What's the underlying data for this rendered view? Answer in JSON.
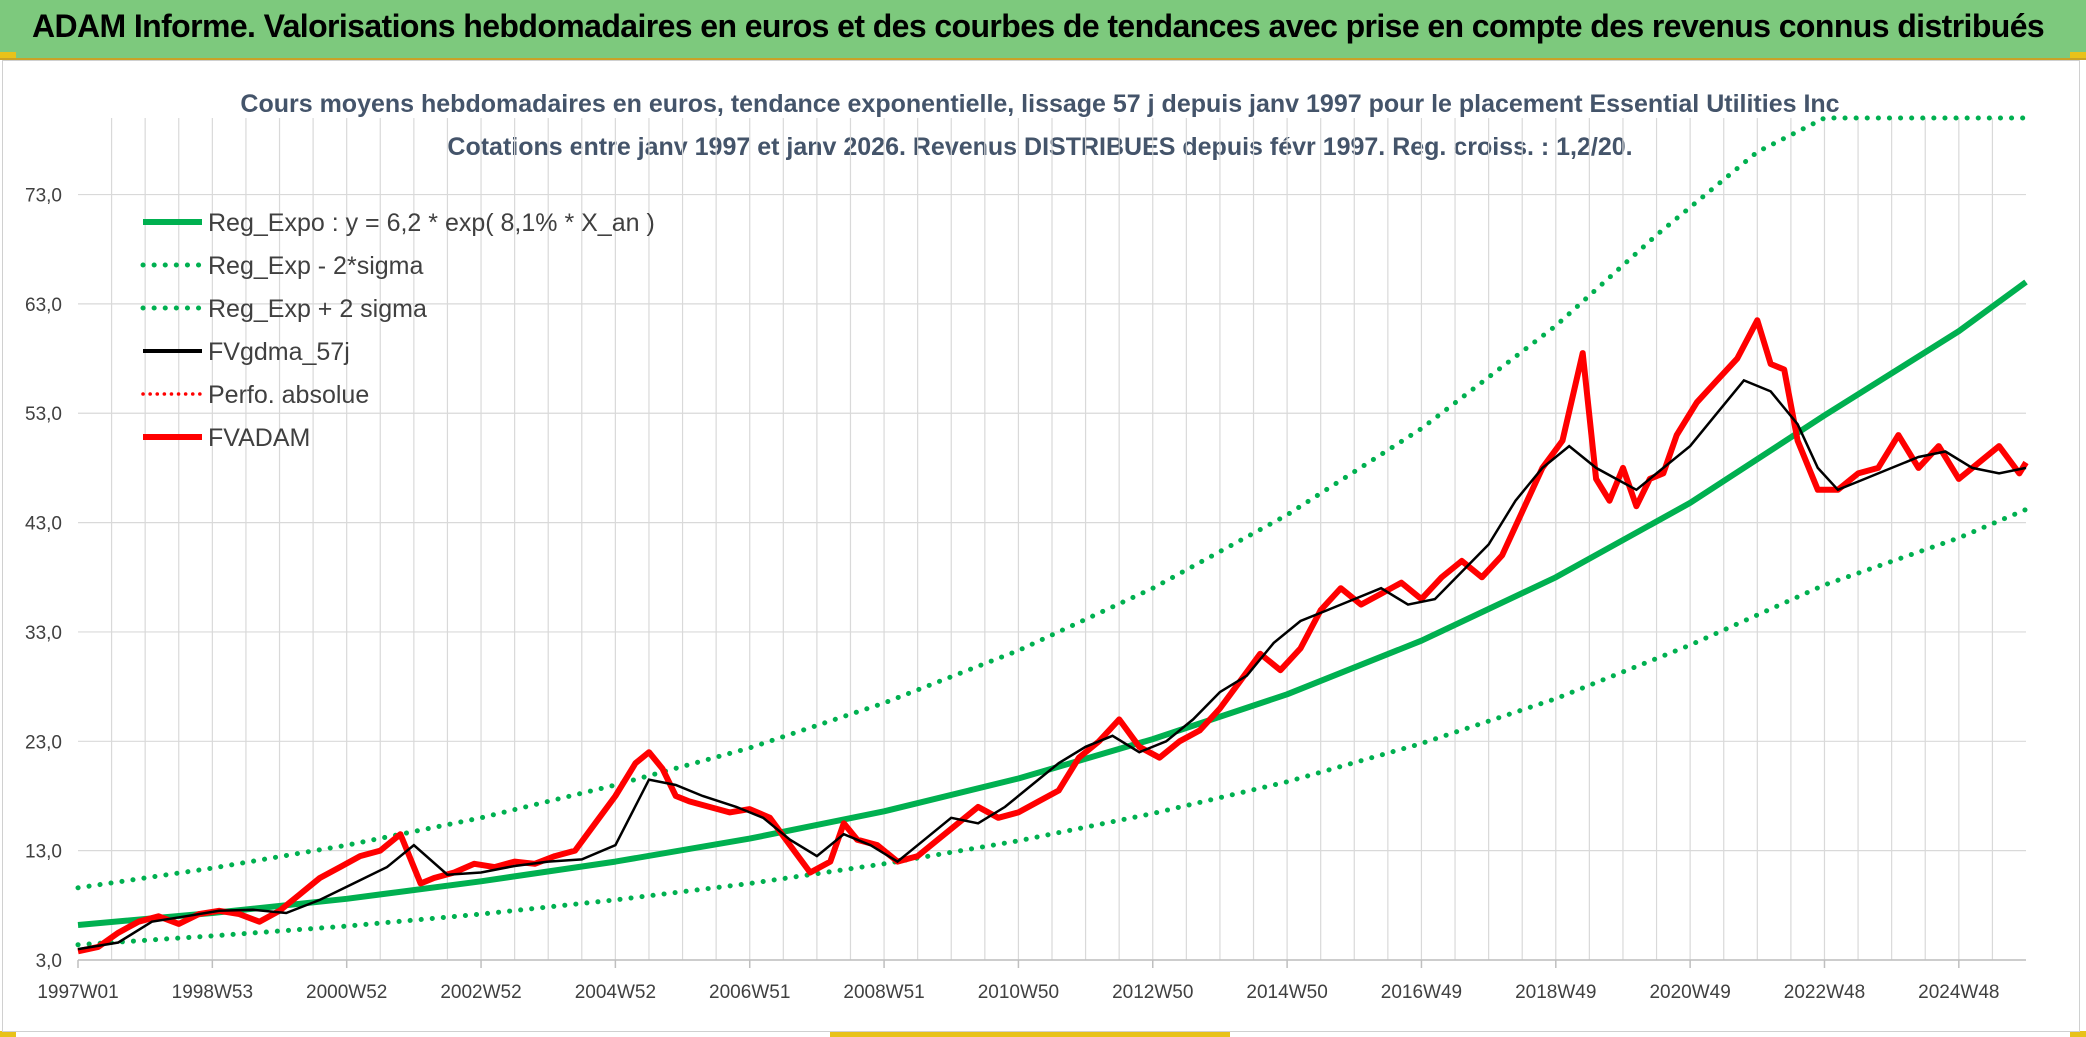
{
  "banner": {
    "title": "ADAM Informe. Valorisations hebdomadaires en euros et des courbes de tendances avec prise en compte des revenus connus distribués"
  },
  "colors": {
    "banner_bg": "#7dc97d",
    "trend": "#00b050",
    "market": "#ff0000",
    "smooth": "#000000",
    "grid": "#d9d9d9"
  },
  "chart_data": {
    "type": "line",
    "title": "Cours moyens hebdomadaires en euros, tendance exponentielle, lissage 57 j depuis janv 1997 pour le placement Essential Utilities Inc",
    "subtitle": "Cotations entre janv 1997 et janv 2026. Revenus DISTRIBUES depuis févr 1997. Reg. croiss. : 1,2/20.",
    "xlabel": "",
    "ylabel": "",
    "ylim": [
      3,
      80
    ],
    "xlim": [
      1997.0,
      2026.0
    ],
    "grid": true,
    "legend_position": "top-left",
    "y_ticks": [
      3,
      13,
      23,
      33,
      43,
      53,
      63,
      73
    ],
    "y_tick_labels": [
      "3,0",
      "13,0",
      "23,0",
      "33,0",
      "43,0",
      "53,0",
      "63,0",
      "73,0"
    ],
    "x_tick_positions": [
      1997.0,
      1999.0,
      2001.0,
      2003.0,
      2005.0,
      2007.0,
      2009.0,
      2011.0,
      2013.0,
      2015.0,
      2017.0,
      2019.0,
      2021.0,
      2023.0,
      2025.0
    ],
    "x_tick_labels": [
      "1997W01",
      "1998W53",
      "2000W52",
      "2002W52",
      "2004W52",
      "2006W51",
      "2008W51",
      "2010W50",
      "2012W50",
      "2014W50",
      "2016W49",
      "2018W49",
      "2020W49",
      "2022W48",
      "2024W48"
    ],
    "legend": [
      "Reg_Expo : y = 6,2 * exp( 8,1% *  X_an )",
      "Reg_Exp - 2*sigma",
      "Reg_Exp + 2 sigma",
      "FVgdma_57j",
      "Perfo. absolue",
      "FVADAM"
    ],
    "series": [
      {
        "name": "Reg_Expo : y = 6,2 * exp( 8,1% *  X_an )",
        "style": "solid-thick",
        "color": "#00b050",
        "x": [
          1997.0,
          1999.0,
          2001.0,
          2003.0,
          2005.0,
          2007.0,
          2009.0,
          2011.0,
          2013.0,
          2015.0,
          2017.0,
          2019.0,
          2021.0,
          2023.0,
          2025.0,
          2026.0
        ],
        "y": [
          6.2,
          7.3,
          8.6,
          10.2,
          12.0,
          14.1,
          16.6,
          19.6,
          23.2,
          27.3,
          32.2,
          38.0,
          44.8,
          52.8,
          60.5,
          65.0
        ]
      },
      {
        "name": "Reg_Exp - 2*sigma",
        "style": "dotted",
        "color": "#00b050",
        "x": [
          1997.0,
          1999.0,
          2001.0,
          2003.0,
          2005.0,
          2007.0,
          2009.0,
          2011.0,
          2013.0,
          2015.0,
          2017.0,
          2019.0,
          2021.0,
          2023.0,
          2025.0,
          2026.0
        ],
        "y": [
          4.4,
          5.2,
          6.1,
          7.2,
          8.5,
          10.0,
          11.8,
          13.9,
          16.4,
          19.3,
          22.8,
          26.9,
          31.8,
          37.3,
          41.6,
          44.2
        ]
      },
      {
        "name": "Reg_Exp + 2 sigma",
        "style": "dotted",
        "color": "#00b050",
        "x": [
          1997.0,
          1999.0,
          2001.0,
          2003.0,
          2005.0,
          2007.0,
          2009.0,
          2011.0,
          2013.0,
          2015.0,
          2017.0,
          2019.0,
          2020.5,
          2022.0,
          2023.0,
          2026.0
        ],
        "y": [
          9.6,
          11.4,
          13.5,
          16.0,
          19.0,
          22.4,
          26.5,
          31.3,
          37.0,
          43.7,
          51.6,
          61.0,
          69.3,
          76.9,
          80.0,
          80.0
        ]
      },
      {
        "name": "FVgdma_57j",
        "style": "solid-thin",
        "color": "#000000",
        "x": [
          1997.0,
          1997.6,
          1998.1,
          1998.6,
          1999.1,
          1999.6,
          2000.1,
          2000.6,
          2001.1,
          2001.6,
          2002.0,
          2002.5,
          2003.0,
          2003.5,
          2004.0,
          2004.5,
          2005.0,
          2005.5,
          2005.9,
          2006.3,
          2006.8,
          2007.2,
          2007.6,
          2008.0,
          2008.4,
          2008.8,
          2009.2,
          2009.6,
          2010.0,
          2010.4,
          2010.8,
          2011.2,
          2011.6,
          2012.0,
          2012.4,
          2012.8,
          2013.2,
          2013.6,
          2014.0,
          2014.4,
          2014.8,
          2015.2,
          2015.6,
          2016.0,
          2016.4,
          2016.8,
          2017.2,
          2017.6,
          2018.0,
          2018.4,
          2018.8,
          2019.2,
          2019.6,
          2019.9,
          2020.2,
          2020.6,
          2021.0,
          2021.4,
          2021.8,
          2022.2,
          2022.6,
          2022.9,
          2023.2,
          2023.6,
          2024.0,
          2024.4,
          2024.8,
          2025.2,
          2025.6,
          2026.0
        ],
        "y": [
          4.0,
          4.6,
          6.5,
          7.0,
          7.5,
          7.6,
          7.3,
          8.5,
          10.0,
          11.5,
          13.5,
          10.8,
          11.0,
          11.6,
          12.0,
          12.2,
          13.5,
          19.5,
          19.0,
          18.0,
          17.0,
          16.0,
          14.0,
          12.5,
          14.5,
          13.5,
          12.0,
          14.0,
          16.0,
          15.5,
          17.0,
          19.0,
          21.0,
          22.5,
          23.5,
          22.0,
          23.0,
          25.0,
          27.5,
          29.0,
          32.0,
          34.0,
          35.0,
          36.0,
          37.0,
          35.5,
          36.0,
          38.5,
          41.0,
          45.0,
          48.0,
          50.0,
          48.0,
          47.0,
          46.0,
          48.0,
          50.0,
          53.0,
          56.0,
          55.0,
          52.0,
          48.0,
          46.0,
          47.0,
          48.0,
          49.0,
          49.5,
          48.0,
          47.5,
          48.0
        ]
      },
      {
        "name": "FVADAM",
        "style": "solid-thick",
        "color": "#ff0000",
        "x": [
          1997.0,
          1997.3,
          1997.6,
          1997.9,
          1998.2,
          1998.5,
          1998.8,
          1999.1,
          1999.4,
          1999.7,
          2000.0,
          2000.3,
          2000.6,
          2000.9,
          2001.2,
          2001.5,
          2001.8,
          2002.1,
          2002.3,
          2002.6,
          2002.9,
          2003.2,
          2003.5,
          2003.8,
          2004.1,
          2004.4,
          2004.7,
          2005.0,
          2005.3,
          2005.5,
          2005.7,
          2005.9,
          2006.1,
          2006.4,
          2006.7,
          2007.0,
          2007.3,
          2007.6,
          2007.9,
          2008.2,
          2008.4,
          2008.6,
          2008.9,
          2009.2,
          2009.5,
          2009.8,
          2010.1,
          2010.4,
          2010.7,
          2011.0,
          2011.3,
          2011.6,
          2011.9,
          2012.2,
          2012.5,
          2012.8,
          2013.1,
          2013.4,
          2013.7,
          2014.0,
          2014.3,
          2014.6,
          2014.9,
          2015.2,
          2015.5,
          2015.8,
          2016.1,
          2016.4,
          2016.7,
          2017.0,
          2017.3,
          2017.6,
          2017.9,
          2018.2,
          2018.5,
          2018.8,
          2019.1,
          2019.4,
          2019.6,
          2019.8,
          2020.0,
          2020.2,
          2020.4,
          2020.6,
          2020.8,
          2021.1,
          2021.4,
          2021.7,
          2022.0,
          2022.2,
          2022.4,
          2022.6,
          2022.9,
          2023.2,
          2023.5,
          2023.8,
          2024.1,
          2024.4,
          2024.7,
          2025.0,
          2025.3,
          2025.6,
          2025.9,
          2026.0
        ],
        "y": [
          3.8,
          4.2,
          5.5,
          6.5,
          7.0,
          6.3,
          7.2,
          7.5,
          7.2,
          6.5,
          7.5,
          9.0,
          10.5,
          11.5,
          12.5,
          13.0,
          14.5,
          10.0,
          10.5,
          11.0,
          11.8,
          11.5,
          12.0,
          11.8,
          12.5,
          13.0,
          15.5,
          18.0,
          21.0,
          22.0,
          20.5,
          18.0,
          17.5,
          17.0,
          16.5,
          16.8,
          16.0,
          13.5,
          11.0,
          12.0,
          15.5,
          14.0,
          13.5,
          12.0,
          12.5,
          14.0,
          15.5,
          17.0,
          16.0,
          16.5,
          17.5,
          18.5,
          21.5,
          23.0,
          25.0,
          22.5,
          21.5,
          23.0,
          24.0,
          26.0,
          28.5,
          31.0,
          29.5,
          31.5,
          35.0,
          37.0,
          35.5,
          36.5,
          37.5,
          36.0,
          38.0,
          39.5,
          38.0,
          40.0,
          44.0,
          48.0,
          50.5,
          58.5,
          47.0,
          45.0,
          48.0,
          44.5,
          47.0,
          47.5,
          51.0,
          54.0,
          56.0,
          58.0,
          61.5,
          57.5,
          57.0,
          50.5,
          46.0,
          46.0,
          47.5,
          48.0,
          51.0,
          48.0,
          50.0,
          47.0,
          48.5,
          50.0,
          47.5,
          48.5
        ]
      }
    ]
  }
}
